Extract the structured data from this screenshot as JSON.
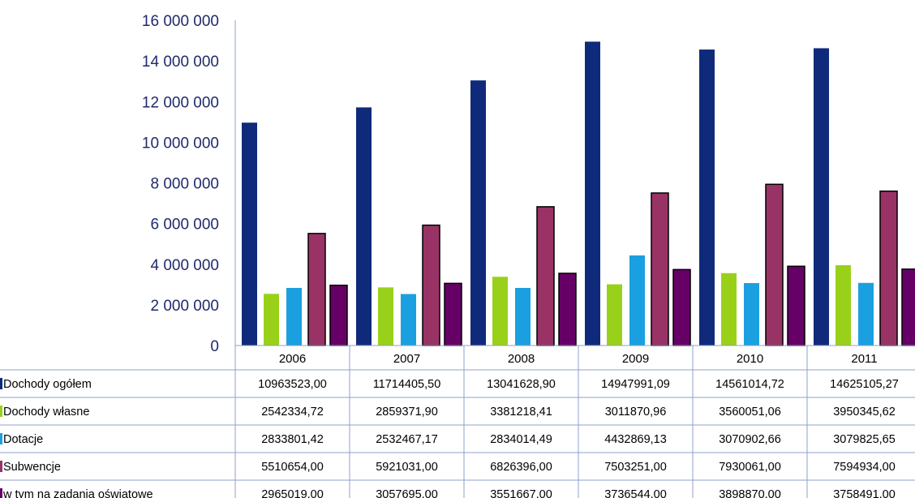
{
  "chart_data": {
    "type": "bar",
    "categories": [
      "2006",
      "2007",
      "2008",
      "2009",
      "2010",
      "2011"
    ],
    "ylim": [
      0,
      16000000
    ],
    "yticks": [
      0,
      2000000,
      4000000,
      6000000,
      8000000,
      10000000,
      12000000,
      14000000,
      16000000
    ],
    "ytick_labels": [
      "0",
      "2 000 000",
      "4 000 000",
      "6 000 000",
      "8 000 000",
      "10 000 000",
      "12 000 000",
      "14 000 000",
      "16 000 000"
    ],
    "legend_placement": "data table below chart",
    "series": [
      {
        "name": "Dochody ogółem",
        "color": "#0f2a7a",
        "values": [
          10963523.0,
          11714405.5,
          13041628.9,
          14947991.09,
          14561014.72,
          14625105.27
        ],
        "labels": [
          "10963523,00",
          "11714405,50",
          "13041628,90",
          "14947991,09",
          "14561014,72",
          "14625105,27"
        ]
      },
      {
        "name": "Dochody własne",
        "color": "#99d11a",
        "values": [
          2542334.72,
          2859371.9,
          3381218.41,
          3011870.96,
          3560051.06,
          3950345.62
        ],
        "labels": [
          "2542334,72",
          "2859371,90",
          "3381218,41",
          "3011870,96",
          "3560051,06",
          "3950345,62"
        ]
      },
      {
        "name": "Dotacje",
        "color": "#1aa0e0",
        "values": [
          2833801.42,
          2532467.17,
          2834014.49,
          4432869.13,
          3070902.66,
          3079825.65
        ],
        "labels": [
          "2833801,42",
          "2532467,17",
          "2834014,49",
          "4432869,13",
          "3070902,66",
          "3079825,65"
        ]
      },
      {
        "name": "Subwencje",
        "color": "#993366",
        "values": [
          5510654.0,
          5921031.0,
          6826396.0,
          7503251.0,
          7930061.0,
          7594934.0
        ],
        "labels": [
          "5510654,00",
          "5921031,00",
          "6826396,00",
          "7503251,00",
          "7930061,00",
          "7594934,00"
        ]
      },
      {
        "name": "w tym na zadania oświatowe",
        "color": "#660066",
        "values": [
          2965019.0,
          3057695.0,
          3551667.0,
          3736544.0,
          3898870.0,
          3758491.0
        ],
        "labels": [
          "2965019,00",
          "3057695,00",
          "3551667,00",
          "3736544,00",
          "3898870,00",
          "3758491,00"
        ]
      }
    ]
  }
}
